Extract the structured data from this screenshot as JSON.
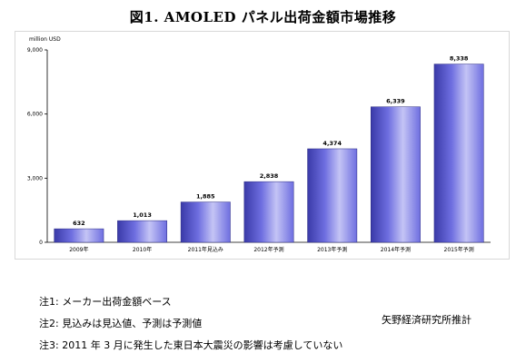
{
  "title": "図1. AMOLED パネル出荷金額市場推移",
  "notes": [
    "注1:  メーカー出荷金額ベース",
    "注2:  見込みは見込値、予測は予測値",
    "注3: 2011 年 3 月に発生した東日本大震災の影響は考慮していない"
  ],
  "source": "矢野経済研究所推計",
  "colors": {
    "bar": "#6e6ee0",
    "bar_light": "#c4c4f5",
    "bar_dark": "#3a3aa8"
  },
  "chart_data": {
    "type": "bar",
    "title": "",
    "xlabel": "",
    "ylabel": "million USD",
    "ylim": [
      0,
      9000
    ],
    "yticks": [
      "0",
      "3,000",
      "6,000",
      "9,000"
    ],
    "ytick_values": [
      0,
      3000,
      6000,
      9000
    ],
    "grid": false,
    "categories": [
      "2009年",
      "2010年",
      "2011年見込み",
      "2012年予測",
      "2013年予測",
      "2014年予測",
      "2015年予測"
    ],
    "values": [
      632,
      1013,
      1885,
      2838,
      4374,
      6339,
      8338
    ],
    "value_labels": [
      "632",
      "1,013",
      "1,885",
      "2,838",
      "4,374",
      "6,339",
      "8,338"
    ]
  }
}
